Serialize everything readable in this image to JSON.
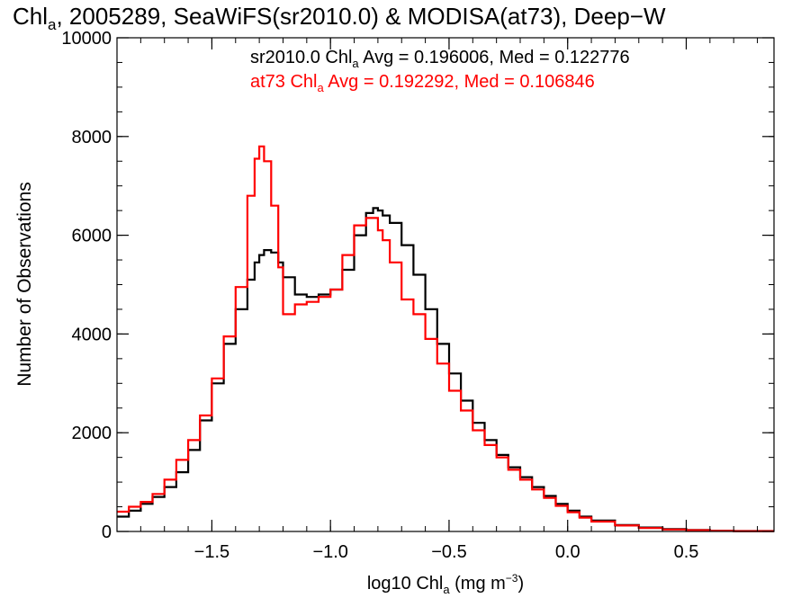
{
  "chart_data": {
    "type": "line",
    "title_parts": [
      "Chl",
      "a",
      ", 2005289, SeaWiFS(sr2010.0) & MODISA(at73), Deep−W"
    ],
    "ylabel": "Number of Observations",
    "xlabel_parts": [
      "log10 Chl",
      "a",
      " (mg m",
      "−3",
      ")"
    ],
    "xlim": [
      -1.9,
      0.87
    ],
    "ylim": [
      0,
      10000
    ],
    "x_ticks": [
      {
        "v": -1.5,
        "label": "−1.5"
      },
      {
        "v": -1.0,
        "label": "−1.0"
      },
      {
        "v": -0.5,
        "label": "−0.5"
      },
      {
        "v": 0.0,
        "label": "0.0"
      },
      {
        "v": 0.5,
        "label": "0.5"
      }
    ],
    "y_ticks": [
      {
        "v": 0,
        "label": "0"
      },
      {
        "v": 2000,
        "label": "2000"
      },
      {
        "v": 4000,
        "label": "4000"
      },
      {
        "v": 6000,
        "label": "6000"
      },
      {
        "v": 8000,
        "label": "8000"
      },
      {
        "v": 10000,
        "label": "10000"
      }
    ],
    "x_minor_step": 0.1,
    "y_minor_step": 500,
    "stats": [
      {
        "color": "#000000",
        "parts": [
          "sr2010.0 Chl",
          "a",
          " Avg = 0.196006, Med = 0.122776"
        ]
      },
      {
        "color": "#ff0000",
        "parts": [
          "at73 Chl",
          "a",
          " Avg = 0.192292, Med = 0.106846"
        ]
      }
    ],
    "series": [
      {
        "color": "#000000",
        "x": [
          -1.9,
          -1.85,
          -1.8,
          -1.75,
          -1.7,
          -1.65,
          -1.6,
          -1.55,
          -1.5,
          -1.45,
          -1.4,
          -1.35,
          -1.32,
          -1.3,
          -1.28,
          -1.25,
          -1.22,
          -1.2,
          -1.15,
          -1.1,
          -1.05,
          -1.0,
          -0.95,
          -0.9,
          -0.85,
          -0.82,
          -0.8,
          -0.78,
          -0.75,
          -0.7,
          -0.65,
          -0.6,
          -0.55,
          -0.5,
          -0.45,
          -0.4,
          -0.35,
          -0.3,
          -0.25,
          -0.2,
          -0.15,
          -0.1,
          -0.05,
          0.0,
          0.05,
          0.1,
          0.2,
          0.3,
          0.4,
          0.5,
          0.6,
          0.7,
          0.87
        ],
        "y": [
          300,
          420,
          560,
          700,
          900,
          1200,
          1650,
          2250,
          3000,
          3800,
          4500,
          5100,
          5450,
          5600,
          5700,
          5650,
          5450,
          5150,
          4800,
          4750,
          4800,
          4900,
          5300,
          6000,
          6450,
          6550,
          6500,
          6400,
          6250,
          5800,
          5200,
          4500,
          3800,
          3200,
          2650,
          2200,
          1850,
          1550,
          1300,
          1100,
          900,
          720,
          560,
          420,
          300,
          220,
          130,
          80,
          50,
          30,
          15,
          10,
          10
        ]
      },
      {
        "color": "#ff0000",
        "x": [
          -1.9,
          -1.85,
          -1.8,
          -1.75,
          -1.7,
          -1.65,
          -1.6,
          -1.55,
          -1.5,
          -1.45,
          -1.4,
          -1.35,
          -1.32,
          -1.3,
          -1.28,
          -1.25,
          -1.22,
          -1.2,
          -1.15,
          -1.1,
          -1.05,
          -1.0,
          -0.95,
          -0.9,
          -0.85,
          -0.82,
          -0.8,
          -0.78,
          -0.75,
          -0.7,
          -0.65,
          -0.6,
          -0.55,
          -0.5,
          -0.45,
          -0.4,
          -0.35,
          -0.3,
          -0.25,
          -0.2,
          -0.15,
          -0.1,
          -0.05,
          0.0,
          0.05,
          0.1,
          0.2,
          0.3,
          0.4,
          0.5,
          0.6,
          0.7,
          0.87
        ],
        "y": [
          400,
          500,
          600,
          760,
          1050,
          1450,
          1850,
          2350,
          3100,
          3950,
          4950,
          6800,
          7550,
          7800,
          7500,
          6600,
          5350,
          4400,
          4600,
          4650,
          4750,
          4900,
          5600,
          6200,
          6350,
          6350,
          6100,
          5900,
          5450,
          4700,
          4400,
          3900,
          3400,
          2850,
          2450,
          2050,
          1750,
          1500,
          1250,
          1050,
          850,
          680,
          520,
          390,
          280,
          200,
          120,
          70,
          40,
          25,
          12,
          8,
          8
        ]
      }
    ]
  }
}
